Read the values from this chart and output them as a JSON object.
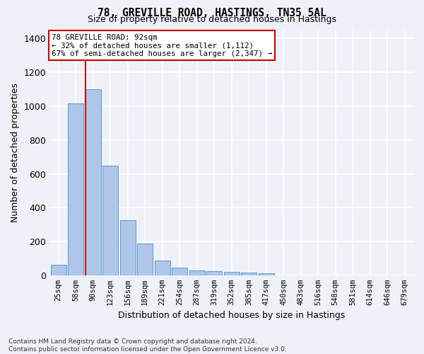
{
  "title1": "78, GREVILLE ROAD, HASTINGS, TN35 5AL",
  "title2": "Size of property relative to detached houses in Hastings",
  "xlabel": "Distribution of detached houses by size in Hastings",
  "ylabel": "Number of detached properties",
  "footnote": "Contains HM Land Registry data © Crown copyright and database right 2024.\nContains public sector information licensed under the Open Government Licence v3.0.",
  "categories": [
    "25sqm",
    "58sqm",
    "90sqm",
    "123sqm",
    "156sqm",
    "189sqm",
    "221sqm",
    "254sqm",
    "287sqm",
    "319sqm",
    "352sqm",
    "385sqm",
    "417sqm",
    "450sqm",
    "483sqm",
    "516sqm",
    "548sqm",
    "581sqm",
    "614sqm",
    "646sqm",
    "679sqm"
  ],
  "values": [
    62,
    1015,
    1100,
    648,
    325,
    187,
    88,
    45,
    28,
    25,
    22,
    15,
    10,
    0,
    0,
    0,
    0,
    0,
    0,
    0,
    0
  ],
  "bar_color": "#aec6e8",
  "bar_edge_color": "#5b9bd5",
  "bg_color": "#eef2f8",
  "grid_color": "#ffffff",
  "vline_color": "#cc0000",
  "vline_index": 2,
  "annotation_text": "78 GREVILLE ROAD: 92sqm\n← 32% of detached houses are smaller (1,112)\n67% of semi-detached houses are larger (2,347) →",
  "annotation_box_color": "#ffffff",
  "annotation_box_edge": "#cc0000",
  "ylim": [
    0,
    1450
  ],
  "yticks": [
    0,
    200,
    400,
    600,
    800,
    1000,
    1200,
    1400
  ]
}
